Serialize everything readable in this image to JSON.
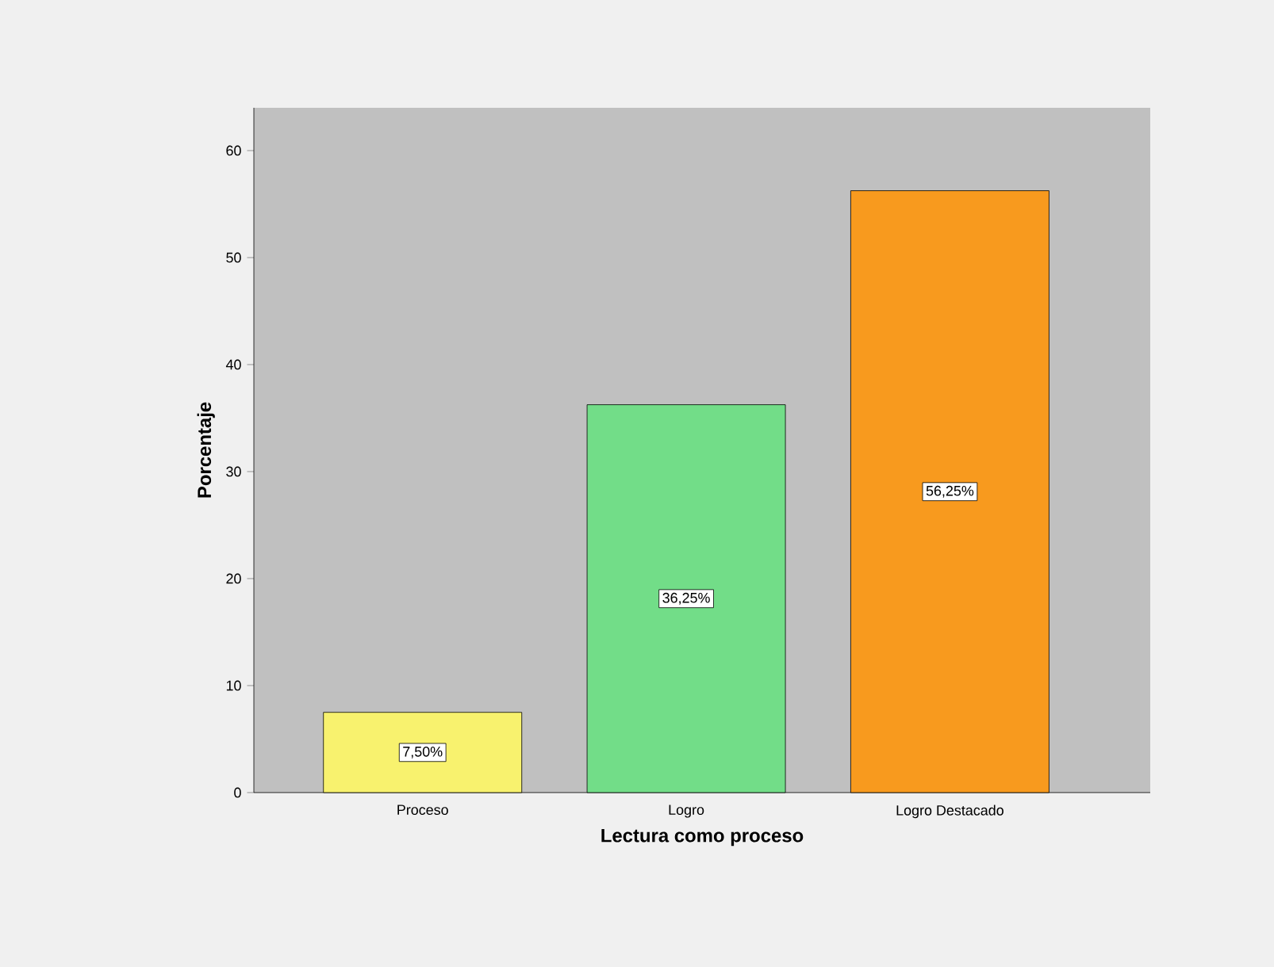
{
  "chart_data": {
    "type": "bar",
    "xlabel": "Lectura como proceso",
    "ylabel": "Porcentaje",
    "categories": [
      "Proceso",
      "Logro",
      "Logro Destacado"
    ],
    "values": [
      7.5,
      36.25,
      56.25
    ],
    "colors": [
      "#f8f26e",
      "#72dd88",
      "#f89a1e"
    ],
    "value_labels": [
      "7,50%",
      "36,25%",
      "56,25%"
    ],
    "ylim": [
      0,
      64
    ],
    "yticks": [
      0,
      10,
      20,
      30,
      40,
      50,
      60
    ]
  }
}
